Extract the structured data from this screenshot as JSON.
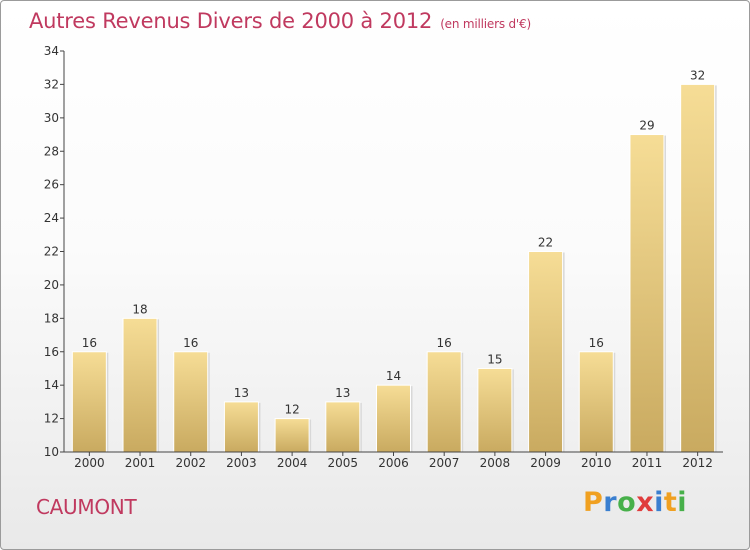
{
  "header": {
    "title": "Autres Revenus Divers de 2000 à 2012",
    "unit": "(en milliers d'€)"
  },
  "footer": {
    "city": "CAUMONT"
  },
  "logo": {
    "letters": [
      "P",
      "r",
      "o",
      "x",
      "i",
      "t",
      "i"
    ],
    "colors": [
      "#f0a020",
      "#3a7fd0",
      "#47b04a",
      "#e03c3c",
      "#3a7fd0",
      "#f0a020",
      "#47b04a"
    ]
  },
  "colors": {
    "title": "#c0395f",
    "bar_light": "#f6dd96",
    "bar_dark": "#c9aa60",
    "axis": "#444444"
  },
  "chart_data": {
    "type": "bar",
    "title": "Autres Revenus Divers de 2000 à 2012",
    "subtitle": "(en milliers d'€)",
    "categories": [
      "2000",
      "2001",
      "2002",
      "2003",
      "2004",
      "2005",
      "2006",
      "2007",
      "2008",
      "2009",
      "2010",
      "2011",
      "2012"
    ],
    "values": [
      16,
      18,
      16,
      13,
      12,
      13,
      14,
      16,
      15,
      22,
      16,
      29,
      32
    ],
    "ylim": [
      10,
      34
    ],
    "yticks": [
      10,
      12,
      14,
      16,
      18,
      20,
      22,
      24,
      26,
      28,
      30,
      32,
      34
    ],
    "grid": false,
    "legend": "none"
  }
}
